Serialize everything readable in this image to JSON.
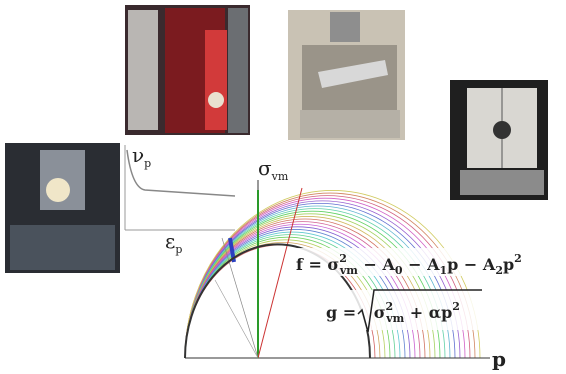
{
  "plot": {
    "y_axis_label": [
      "σ",
      "vm"
    ],
    "x_axis_label": "p"
  },
  "inset": {
    "y_label": [
      "ν",
      "p"
    ],
    "x_label": [
      "ε",
      "p"
    ]
  },
  "formula_f": [
    "f = σ",
    "2",
    "vm",
    " − A",
    "0",
    " − A",
    "1",
    "p − A",
    "2",
    "p",
    "2"
  ],
  "formula_g": [
    "g = ",
    "σ",
    "2",
    "vm",
    " + αp",
    "2"
  ]
}
